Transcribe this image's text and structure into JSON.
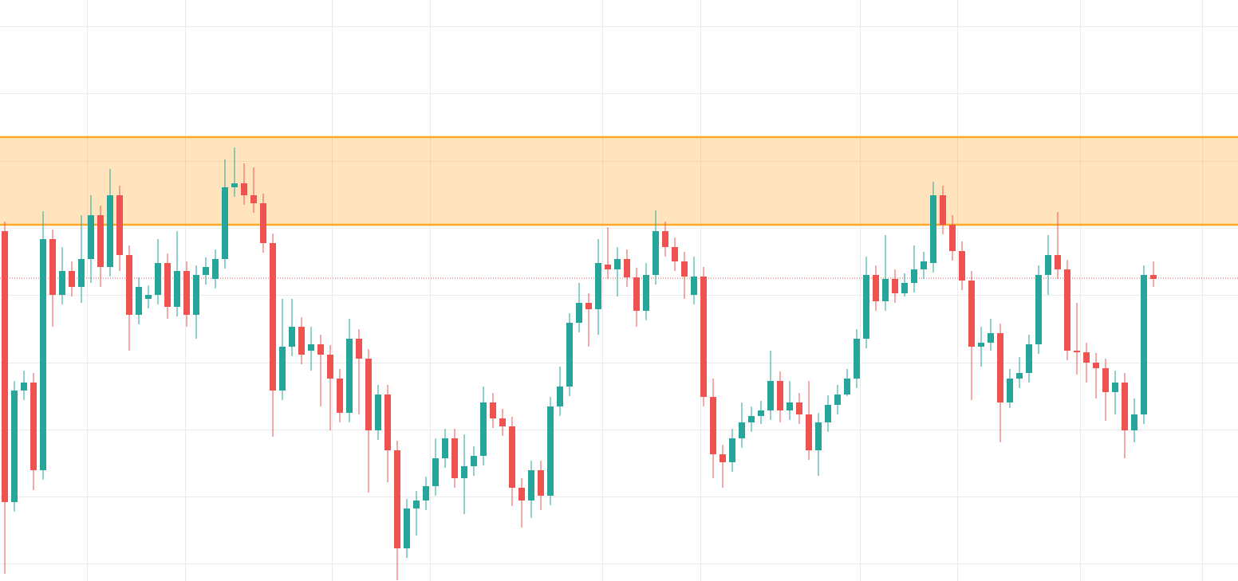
{
  "chart_data": {
    "type": "candlestick",
    "up_color": "#26a69a",
    "down_color": "#ef5350",
    "ylim": [
      0,
      729
    ],
    "yticks": [
      22,
      106,
      190,
      274,
      359,
      443,
      527,
      612,
      696
    ],
    "grid": true,
    "zones": [
      {
        "from": 447,
        "to": 557,
        "color": "#ffa726"
      }
    ],
    "hlines": [
      {
        "value": 380,
        "color": "#ef5350"
      }
    ],
    "open": [
      439,
      99,
      239,
      249,
      139,
      429,
      359,
      389,
      369,
      404,
      459,
      394,
      484,
      409,
      334,
      354,
      359,
      399,
      344,
      389,
      334,
      384,
      379,
      404,
      494,
      499,
      484,
      474,
      424,
      239,
      294,
      319,
      289,
      297,
      284,
      254,
      211,
      304,
      279,
      189,
      234,
      164,
      41,
      91,
      101,
      119,
      154,
      179,
      129,
      144,
      157,
      224,
      204,
      194,
      117,
      101,
      139,
      107,
      219,
      244,
      324,
      349,
      341,
      397,
      391,
      404,
      381,
      339,
      384,
      439,
      419,
      401,
      359,
      382,
      231,
      159,
      149,
      179,
      199,
      207,
      214,
      251,
      214,
      224,
      209,
      164,
      199,
      221,
      234,
      254,
      304,
      384,
      351,
      379,
      361,
      374,
      391,
      399,
      484,
      447,
      414,
      377,
      294,
      299,
      311,
      224,
      254,
      261,
      297,
      384,
      409,
      391,
      289,
      287,
      274,
      267,
      237,
      249,
      189,
      209,
      384
    ],
    "high": [
      451,
      251,
      264,
      261,
      464,
      441,
      419,
      401,
      459,
      484,
      471,
      517,
      496,
      421,
      381,
      371,
      429,
      411,
      439,
      401,
      396,
      406,
      416,
      529,
      544,
      524,
      519,
      486,
      436,
      354,
      354,
      331,
      319,
      309,
      296,
      266,
      329,
      316,
      291,
      246,
      246,
      176,
      103,
      113,
      131,
      179,
      191,
      191,
      184,
      169,
      244,
      236,
      216,
      206,
      129,
      151,
      151,
      231,
      269,
      336,
      374,
      361,
      429,
      444,
      419,
      416,
      393,
      399,
      465,
      451,
      431,
      413,
      407,
      394,
      254,
      171,
      191,
      224,
      219,
      226,
      289,
      263,
      251,
      236,
      251,
      211,
      233,
      246,
      266,
      316,
      407,
      396,
      434,
      391,
      386,
      421,
      413,
      501,
      496,
      459,
      426,
      389,
      319,
      329,
      323,
      266,
      281,
      309,
      396,
      434,
      463,
      403,
      349,
      299,
      286,
      279,
      264,
      261,
      229,
      396,
      401
    ],
    "low": [
      9,
      87,
      227,
      114,
      127,
      319,
      347,
      357,
      349,
      374,
      369,
      382,
      389,
      289,
      322,
      342,
      347,
      329,
      332,
      319,
      304,
      372,
      367,
      392,
      482,
      472,
      462,
      412,
      181,
      227,
      282,
      272,
      264,
      219,
      189,
      199,
      199,
      209,
      111,
      177,
      124,
      1,
      29,
      57,
      89,
      107,
      142,
      117,
      84,
      132,
      145,
      192,
      182,
      94,
      67,
      79,
      89,
      95,
      207,
      232,
      312,
      294,
      309,
      379,
      357,
      369,
      319,
      327,
      372,
      407,
      389,
      354,
      347,
      219,
      129,
      117,
      137,
      167,
      187,
      197,
      202,
      199,
      202,
      197,
      152,
      132,
      187,
      209,
      232,
      242,
      292,
      339,
      339,
      349,
      357,
      362,
      379,
      387,
      435,
      402,
      365,
      227,
      269,
      289,
      174,
      217,
      242,
      249,
      285,
      359,
      379,
      277,
      259,
      249,
      229,
      201,
      209,
      154,
      174,
      197,
      369
    ],
    "close": [
      99,
      239,
      249,
      139,
      429,
      359,
      389,
      369,
      404,
      459,
      394,
      484,
      409,
      334,
      369,
      359,
      399,
      344,
      389,
      334,
      384,
      394,
      404,
      494,
      499,
      484,
      474,
      424,
      239,
      294,
      319,
      284,
      297,
      284,
      254,
      211,
      304,
      279,
      189,
      234,
      164,
      41,
      91,
      101,
      119,
      154,
      179,
      129,
      144,
      157,
      224,
      204,
      194,
      117,
      101,
      139,
      107,
      219,
      244,
      324,
      349,
      341,
      399,
      391,
      404,
      381,
      339,
      384,
      439,
      419,
      401,
      382,
      382,
      231,
      159,
      149,
      179,
      199,
      207,
      214,
      251,
      214,
      224,
      209,
      164,
      199,
      221,
      234,
      254,
      304,
      384,
      351,
      379,
      361,
      374,
      391,
      401,
      484,
      447,
      414,
      377,
      294,
      299,
      311,
      224,
      254,
      261,
      297,
      384,
      409,
      391,
      289,
      287,
      274,
      267,
      237,
      249,
      189,
      209,
      384,
      379
    ]
  }
}
